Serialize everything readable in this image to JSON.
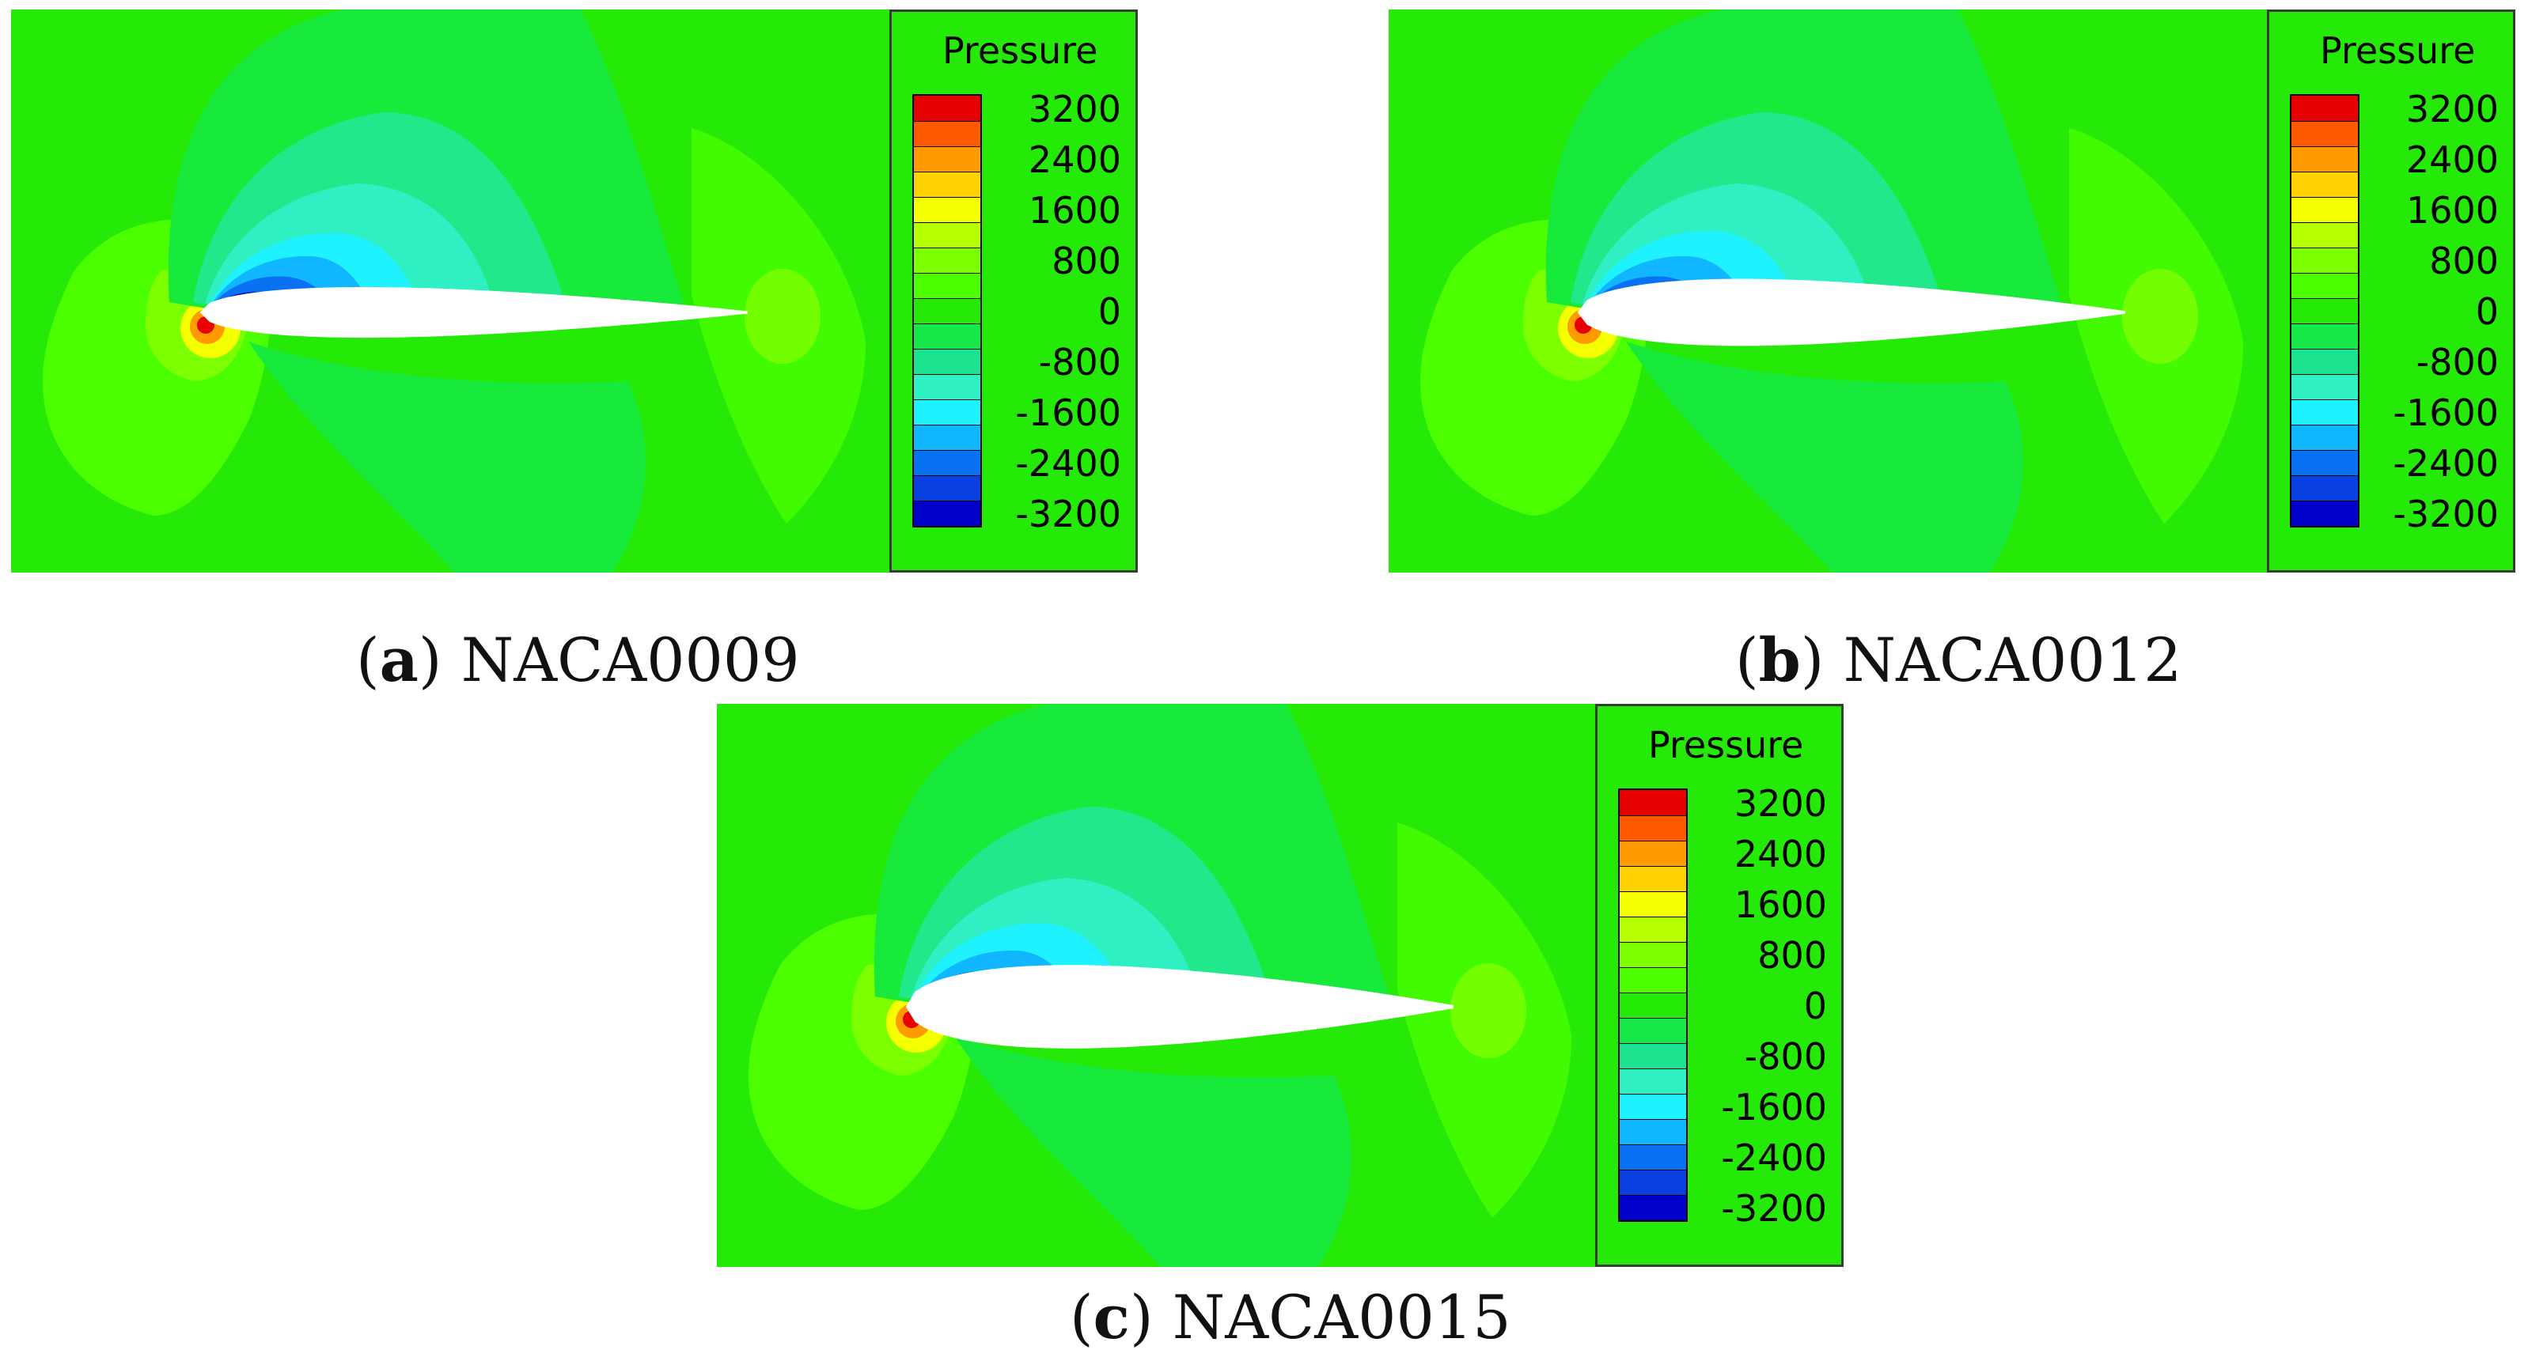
{
  "figure": {
    "legend_title": "Pressure",
    "legend_labels": [
      "3200",
      "2400",
      "1600",
      "800",
      "0",
      "-800",
      "-1600",
      "-2400",
      "-3200"
    ],
    "legend_colors": [
      "#e60000",
      "#ff5a00",
      "#ff9a00",
      "#ffd200",
      "#f4ff00",
      "#b6ff00",
      "#7cff00",
      "#4bff00",
      "#25ea08",
      "#16e84a",
      "#1ce38f",
      "#2ff0c2",
      "#1ff2ff",
      "#10b6ff",
      "#0a72f2",
      "#0a3fe0",
      "#0000c8"
    ],
    "field_colors": {
      "background": "#25ea08",
      "light_green": "#4bff00",
      "yellow_green": "#7cff00",
      "pale_green": "#18ea3b",
      "mint": "#21e88a",
      "cyan_green": "#2ff0c2",
      "cyan": "#1ff2ff",
      "sky": "#10b6ff",
      "blue": "#0a72f2",
      "dark_blue": "#0000c8",
      "red": "#e60000",
      "orange": "#ff9a00",
      "yellow": "#f4ff00",
      "airfoil": "#ffffff"
    },
    "panels": [
      {
        "letter": "a",
        "name": "NACA0009",
        "thickness": 0.09
      },
      {
        "letter": "b",
        "name": "NACA0012",
        "thickness": 0.12
      },
      {
        "letter": "c",
        "name": "NACA0015",
        "thickness": 0.15
      }
    ]
  }
}
